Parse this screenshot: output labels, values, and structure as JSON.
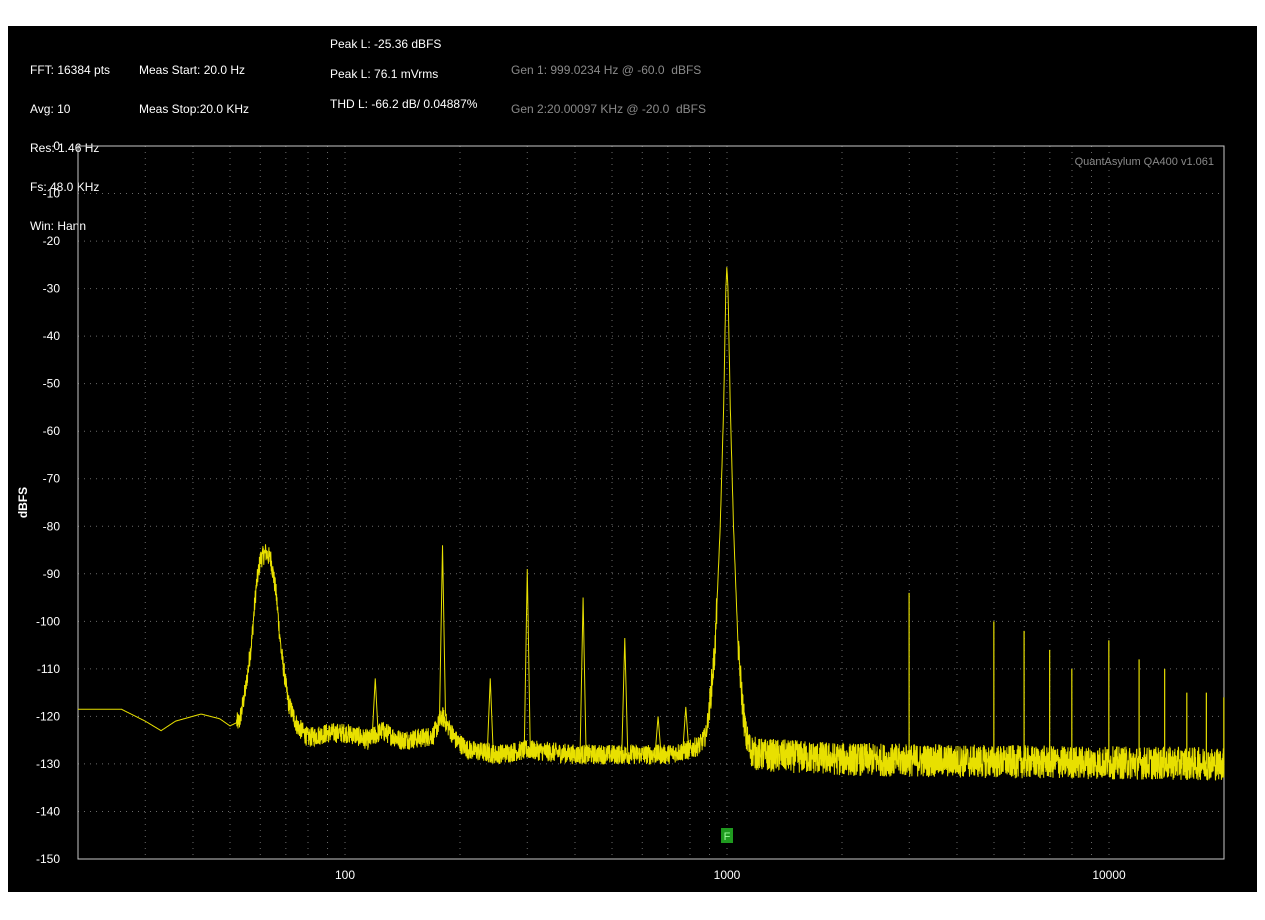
{
  "header": {
    "fft_info": [
      "FFT: 16384 pts",
      "Avg: 10",
      "Res: 1.46 Hz",
      "Fs: 48.0 KHz",
      "Win: Hann"
    ],
    "meas_info": [
      "Meas Start: 20.0 Hz",
      "Meas Stop:20.0 KHz"
    ],
    "peak_dbfs": "Peak L: -25.36 dBFS",
    "peak_vrms": "Peak L: 76.1 mVrms",
    "thd": "THD L: -66.2 dB/ 0.04887%",
    "gen1": "Gen 1: 999.0234 Hz @ -60.0  dBFS",
    "gen2": "Gen 2:20.00097 KHz @ -20.0  dBFS"
  },
  "chart_data": {
    "type": "line",
    "watermark": "QuantAsylum QA400 v1.061",
    "ylabel": "dBFS",
    "xlabel": "",
    "xscale": "log",
    "xlim": [
      20,
      20000
    ],
    "ylim": [
      -150,
      0
    ],
    "x_ticks": [
      100,
      1000,
      10000
    ],
    "x_tick_labels": [
      "100",
      "1000",
      "10000"
    ],
    "y_ticks": [
      0,
      -10,
      -20,
      -30,
      -40,
      -50,
      -60,
      -70,
      -80,
      -90,
      -100,
      -110,
      -120,
      -130,
      -140,
      -150
    ],
    "y_tick_labels": [
      "0",
      "-10",
      "-20",
      "-30",
      "-40",
      "-50",
      "-60",
      "-70",
      "-80",
      "-90",
      "-100",
      "-110",
      "-120",
      "-130",
      "-140",
      "-150"
    ],
    "grid": true,
    "line_color": "#e8e000",
    "marker": {
      "label": "F",
      "x": 1000,
      "color": "#1f9a1f"
    },
    "series": [
      {
        "name": "",
        "noise_floor": [
          [
            20,
            -118.5
          ],
          [
            26,
            -118.5
          ],
          [
            30,
            -121
          ],
          [
            33,
            -123
          ],
          [
            36,
            -121
          ],
          [
            42,
            -119.5
          ],
          [
            47,
            -120.5
          ],
          [
            50,
            -122
          ],
          [
            53,
            -121
          ],
          [
            55,
            -114
          ],
          [
            57,
            -104
          ],
          [
            58.5,
            -93
          ],
          [
            60,
            -87
          ],
          [
            62,
            -85.5
          ],
          [
            64,
            -87
          ],
          [
            66,
            -94
          ],
          [
            68,
            -106
          ],
          [
            71,
            -117
          ],
          [
            75,
            -122
          ],
          [
            80,
            -124.5
          ],
          [
            90,
            -123.5
          ],
          [
            100,
            -123.5
          ],
          [
            107,
            -124
          ],
          [
            115,
            -125
          ],
          [
            125,
            -123
          ],
          [
            140,
            -125
          ],
          [
            160,
            -124.5
          ],
          [
            170,
            -124
          ],
          [
            180,
            -120
          ],
          [
            195,
            -125
          ],
          [
            210,
            -127
          ],
          [
            250,
            -128
          ],
          [
            300,
            -127
          ],
          [
            400,
            -128
          ],
          [
            500,
            -128
          ],
          [
            600,
            -128
          ],
          [
            700,
            -128
          ],
          [
            800,
            -127
          ],
          [
            850,
            -126
          ],
          [
            880,
            -124
          ],
          [
            900,
            -118
          ],
          [
            930,
            -106
          ],
          [
            960,
            -80
          ],
          [
            980,
            -55
          ],
          [
            993,
            -30
          ],
          [
            999,
            -25.36
          ],
          [
            1006,
            -30
          ],
          [
            1020,
            -55
          ],
          [
            1040,
            -80
          ],
          [
            1070,
            -106
          ],
          [
            1100,
            -118
          ],
          [
            1120,
            -124
          ],
          [
            1150,
            -127
          ],
          [
            1200,
            -128
          ],
          [
            2000,
            -129
          ],
          [
            5000,
            -129.5
          ],
          [
            20000,
            -130
          ]
        ],
        "peaks": [
          [
            120,
            -112
          ],
          [
            180,
            -84
          ],
          [
            240,
            -112
          ],
          [
            300,
            -89
          ],
          [
            420,
            -95
          ],
          [
            540,
            -103.5
          ],
          [
            660,
            -120
          ],
          [
            780,
            -118
          ],
          [
            2997,
            -94
          ],
          [
            4995,
            -100
          ],
          [
            5994,
            -102
          ],
          [
            6993,
            -106
          ],
          [
            7992,
            -110
          ],
          [
            9990,
            -104
          ],
          [
            11988,
            -108
          ],
          [
            13986,
            -110
          ],
          [
            15984,
            -115
          ],
          [
            17982,
            -115
          ],
          [
            19980,
            -116
          ]
        ],
        "noise_amplitude_db": 3.5
      }
    ]
  }
}
